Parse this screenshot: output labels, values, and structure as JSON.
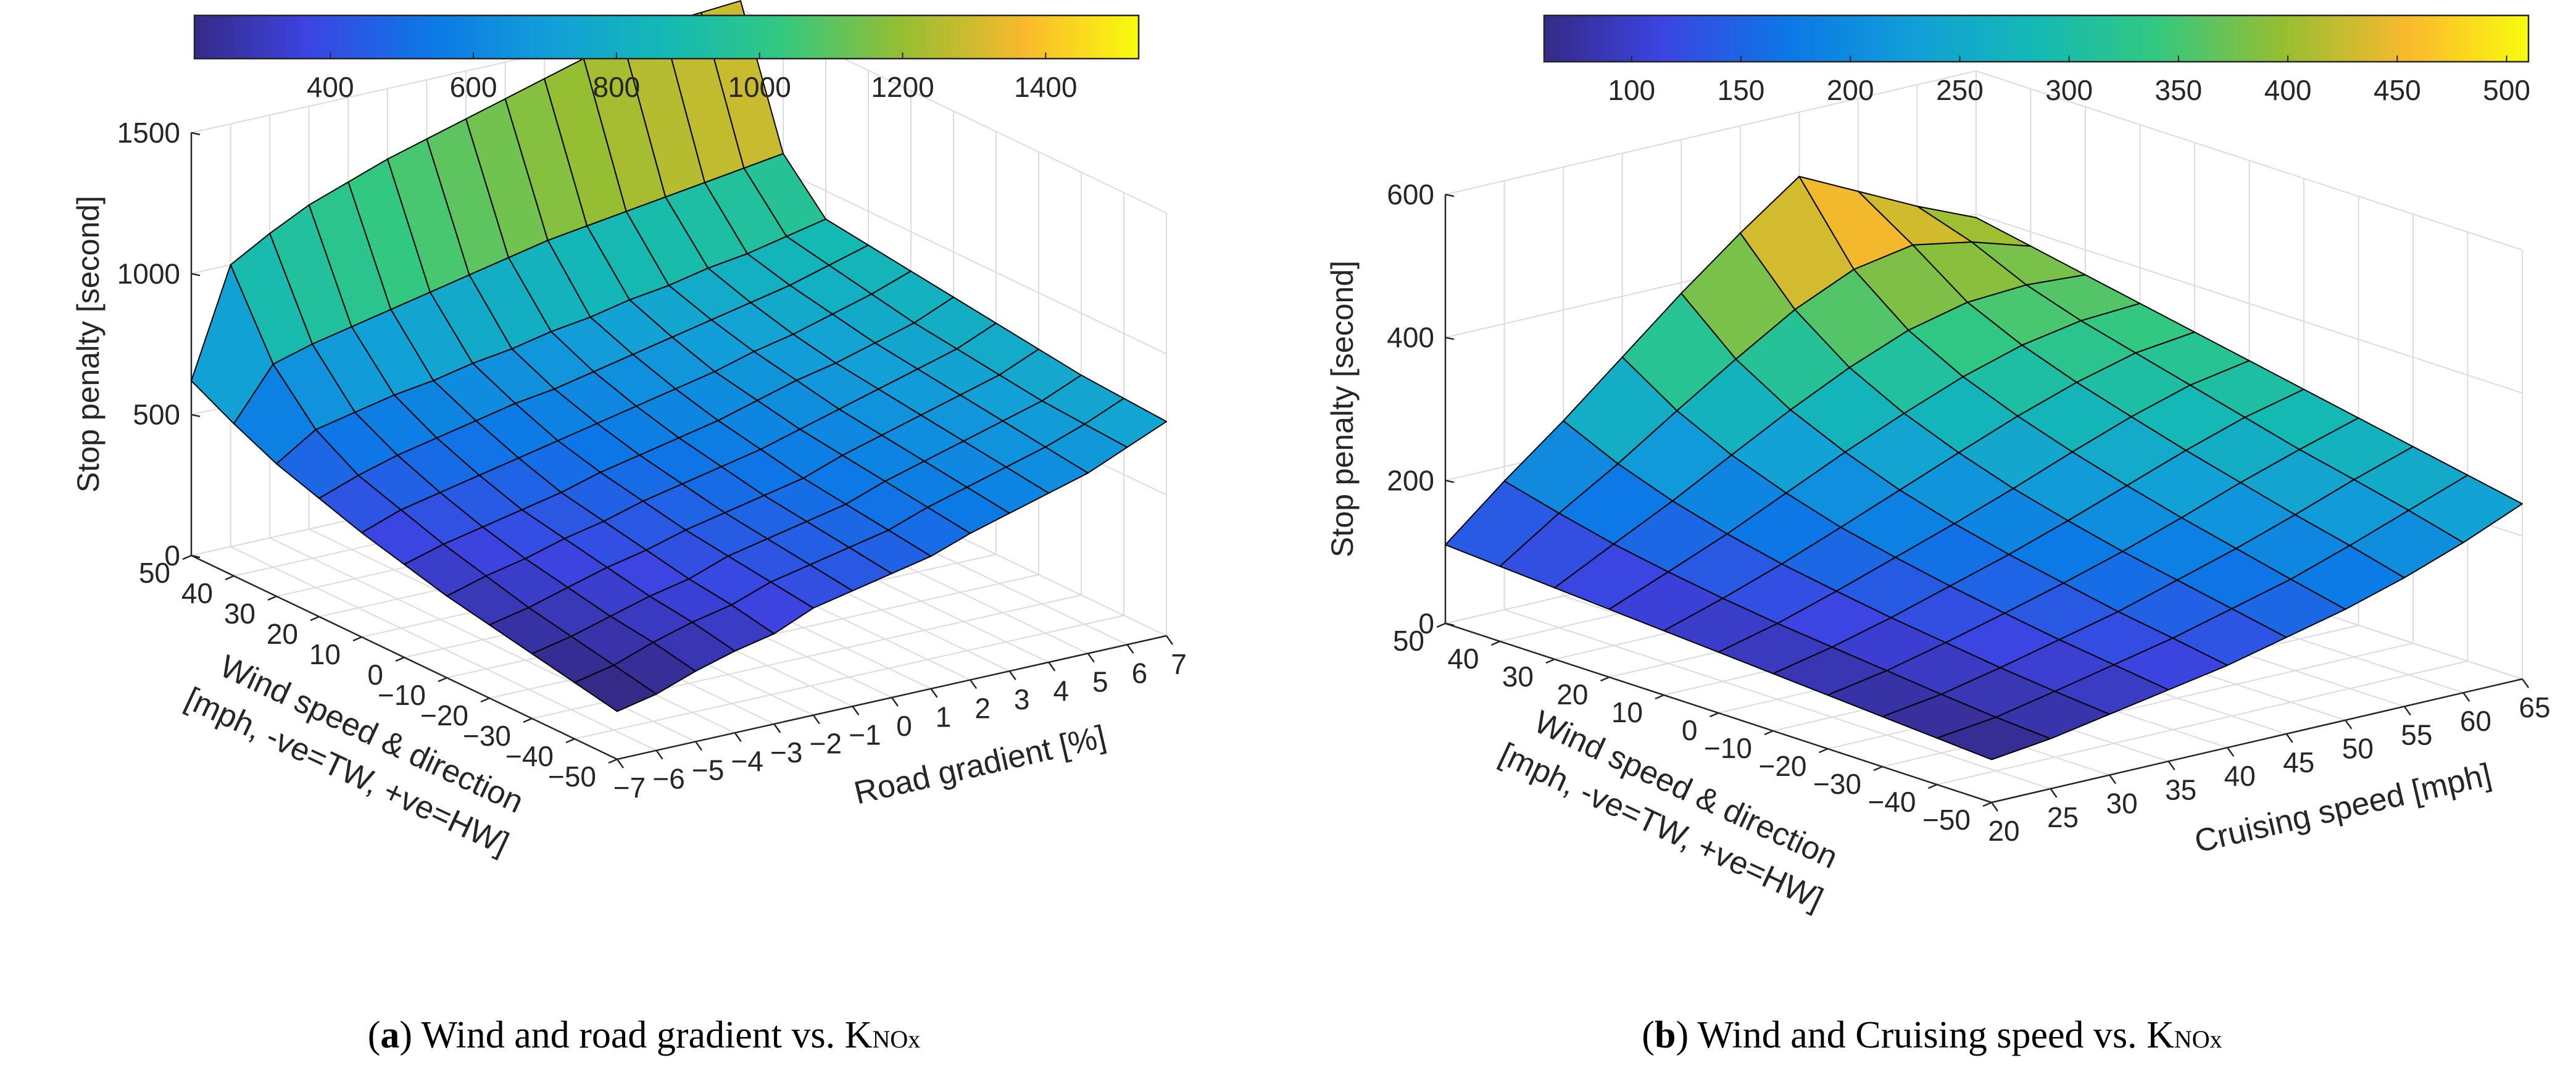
{
  "chart_data": [
    {
      "type": "surface",
      "panel_id": "a",
      "caption": {
        "letter": "a",
        "text": "Wind and road gradient vs. K",
        "subscript": "NOx"
      },
      "title": "",
      "x": {
        "label": "Road gradient [%]",
        "values": [
          -7,
          -6,
          -5,
          -4,
          -3,
          -2,
          -1,
          0,
          1,
          2,
          3,
          4,
          5,
          6,
          7
        ]
      },
      "y": {
        "label_lines": [
          "Wind speed & direction",
          "[mph, -ve=TW, +ve=HW]"
        ],
        "values": [
          -50,
          -40,
          -30,
          -20,
          -10,
          0,
          10,
          20,
          30,
          40,
          50
        ]
      },
      "z": {
        "label": "Stop penalty [second]",
        "lim": [
          0,
          1500
        ],
        "ticks": [
          0,
          500,
          1000,
          1500
        ]
      },
      "colorbar": {
        "lim": [
          210,
          1530
        ],
        "ticks": [
          400,
          600,
          800,
          1000,
          1200,
          1400
        ]
      },
      "z_values": [
        [
          170,
          200,
          250,
          290,
          320,
          380,
          410,
          440,
          470,
          520,
          560,
          600,
          640,
          700,
          760
        ],
        [
          200,
          230,
          280,
          320,
          350,
          400,
          430,
          460,
          490,
          540,
          580,
          620,
          660,
          710,
          770
        ],
        [
          230,
          260,
          300,
          340,
          370,
          420,
          450,
          480,
          510,
          560,
          600,
          640,
          680,
          720,
          780
        ],
        [
          260,
          290,
          330,
          370,
          400,
          440,
          470,
          500,
          530,
          580,
          620,
          660,
          700,
          740,
          800
        ],
        [
          290,
          330,
          360,
          400,
          430,
          470,
          500,
          530,
          560,
          600,
          640,
          680,
          720,
          760,
          820
        ],
        [
          330,
          370,
          400,
          430,
          460,
          500,
          530,
          560,
          590,
          630,
          670,
          700,
          740,
          780,
          840
        ],
        [
          370,
          420,
          450,
          480,
          510,
          540,
          570,
          600,
          630,
          660,
          700,
          730,
          770,
          810,
          860
        ],
        [
          420,
          470,
          510,
          540,
          570,
          600,
          620,
          650,
          680,
          710,
          740,
          770,
          800,
          840,
          880
        ],
        [
          470,
          560,
          590,
          620,
          640,
          670,
          690,
          720,
          740,
          770,
          790,
          820,
          840,
          870,
          900
        ],
        [
          540,
          720,
          760,
          790,
          820,
          850,
          880,
          910,
          940,
          960,
          980,
          1000,
          1020,
          1040,
          1060
        ],
        [
          620,
          1000,
          1080,
          1150,
          1200,
          1250,
          1290,
          1330,
          1370,
          1410,
          1450,
          1480,
          1510,
          1520,
          1530
        ]
      ]
    },
    {
      "type": "surface",
      "panel_id": "b",
      "caption": {
        "letter": "b",
        "text": "Wind and Cruising speed vs. K",
        "subscript": "NOx"
      },
      "title": "",
      "x": {
        "label": "Cruising speed [mph]",
        "values": [
          20,
          25,
          30,
          35,
          40,
          45,
          50,
          55,
          60,
          65
        ]
      },
      "y": {
        "label_lines": [
          "Wind speed & direction",
          "[mph, -ve=TW, +ve=HW]"
        ],
        "values": [
          -50,
          -40,
          -30,
          -20,
          -10,
          0,
          10,
          20,
          30,
          40,
          50
        ]
      },
      "z": {
        "label": "Stop penalty [second]",
        "lim": [
          0,
          600
        ],
        "ticks": [
          0,
          200,
          400,
          600
        ]
      },
      "colorbar": {
        "lim": [
          60,
          510
        ],
        "ticks": [
          100,
          150,
          200,
          250,
          300,
          350,
          400,
          450,
          500
        ]
      },
      "z_values": [
        [
          60,
          70,
          85,
          100,
          115,
          135,
          155,
          180,
          210,
          245
        ],
        [
          65,
          75,
          92,
          110,
          128,
          150,
          172,
          200,
          230,
          260
        ],
        [
          70,
          82,
          100,
          120,
          140,
          165,
          190,
          218,
          248,
          275
        ],
        [
          75,
          90,
          110,
          132,
          155,
          180,
          208,
          238,
          265,
          290
        ],
        [
          80,
          98,
          120,
          145,
          170,
          198,
          228,
          258,
          285,
          305
        ],
        [
          85,
          106,
          132,
          160,
          188,
          218,
          250,
          280,
          305,
          320
        ],
        [
          90,
          116,
          145,
          177,
          210,
          243,
          275,
          303,
          325,
          335
        ],
        [
          95,
          128,
          162,
          200,
          238,
          273,
          305,
          330,
          345,
          350
        ],
        [
          100,
          142,
          183,
          228,
          272,
          312,
          345,
          365,
          370,
          365
        ],
        [
          105,
          160,
          210,
          265,
          318,
          368,
          405,
          420,
          405,
          380
        ],
        [
          110,
          180,
          245,
          315,
          385,
          450,
          510,
          470,
          430,
          395
        ]
      ]
    }
  ]
}
